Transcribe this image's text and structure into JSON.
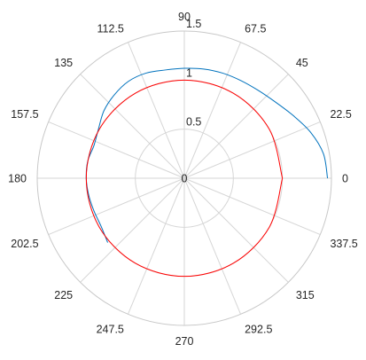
{
  "chart_data": {
    "type": "polar-line",
    "title": "",
    "angle_ticks": [
      "0",
      "22.5",
      "45",
      "67.5",
      "90",
      "112.5",
      "135",
      "157.5",
      "180",
      "202.5",
      "225",
      "247.5",
      "270",
      "292.5",
      "315",
      "337.5"
    ],
    "angle_tick_values_deg": [
      0,
      22.5,
      45,
      67.5,
      90,
      112.5,
      135,
      157.5,
      180,
      202.5,
      225,
      247.5,
      270,
      292.5,
      315,
      337.5
    ],
    "radial_ticks": [
      "0",
      "0.5",
      "1",
      "1.5"
    ],
    "radial_tick_values": [
      0,
      0.5,
      1,
      1.5
    ],
    "rlim": [
      0,
      1.5
    ],
    "grid": true,
    "series": [
      {
        "color": "#0072BD",
        "theta_deg": [
          0,
          10,
          20,
          30,
          40,
          50,
          60,
          70,
          80,
          90,
          100,
          110,
          120,
          130,
          140,
          150,
          160,
          170,
          180,
          190,
          200,
          210,
          220
        ],
        "r": [
          1.46,
          1.44,
          1.37,
          1.28,
          1.21,
          1.17,
          1.15,
          1.14,
          1.13,
          1.12,
          1.12,
          1.14,
          1.14,
          1.11,
          1.07,
          1.01,
          0.98,
          1.0,
          1.0,
          0.99,
          0.98,
          0.98,
          1.02
        ]
      },
      {
        "color": "#FF0000",
        "theta_deg": [
          0,
          30,
          60,
          90,
          120,
          150,
          180,
          210,
          240,
          270,
          300,
          330,
          360
        ],
        "r": [
          1,
          1,
          1,
          1,
          1,
          1,
          1,
          1,
          1,
          1,
          1,
          1,
          1
        ]
      }
    ]
  }
}
